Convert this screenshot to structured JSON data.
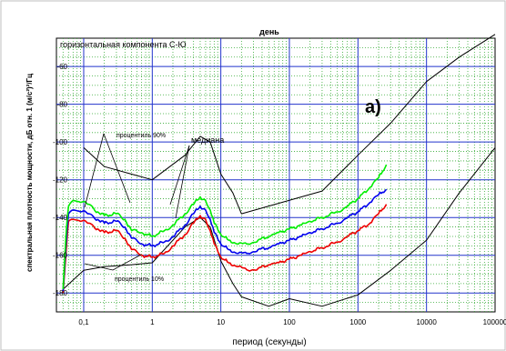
{
  "chart_data": {
    "type": "line",
    "title": "день",
    "subtitle": "горизонтальная компонента С-Ю",
    "xlabel": "период (секунды)",
    "ylabel": "спектральная плотность мощности, дБ отн. 1 (м/с²)²/Гц",
    "panel_label": "а)",
    "x_scale": "log",
    "xlim": [
      0.04,
      100000
    ],
    "ylim": [
      -190,
      -45
    ],
    "x_ticks": [
      0.1,
      1,
      10,
      100,
      1000,
      10000,
      100000
    ],
    "x_tick_labels": [
      "0,1",
      "1",
      "10",
      "100",
      "1000",
      "10000",
      "100000"
    ],
    "y_ticks": [
      -180,
      -160,
      -140,
      -120,
      -100,
      -80,
      -60
    ],
    "y_tick_labels": [
      "-180",
      "-160",
      "-140",
      "-120",
      "-100",
      "-80",
      "-60"
    ],
    "grid": true,
    "colors": {
      "major_grid": "#2233cc",
      "minor_grid": "#33aa33",
      "percentile_90": "#00ee00",
      "median": "#0000ee",
      "percentile_10": "#ee0000",
      "noise_model": "#000000"
    },
    "annotations": [
      {
        "text": "процентиль 90%"
      },
      {
        "text": "медиана"
      },
      {
        "text": "процентиль 10%"
      }
    ],
    "series": [
      {
        "key": "percentile_90",
        "x": [
          0.05,
          0.055,
          0.06,
          0.07,
          0.09,
          0.12,
          0.16,
          0.2,
          0.3,
          0.4,
          0.5,
          0.7,
          1,
          1.5,
          2,
          3,
          4,
          5,
          6,
          7,
          8,
          10,
          13,
          18,
          25,
          35,
          50,
          70,
          100,
          150,
          200,
          300,
          500,
          700,
          1000,
          1500,
          2000,
          2600
        ],
        "y": [
          -178,
          -150,
          -134,
          -131,
          -132,
          -133,
          -137,
          -139,
          -138,
          -141,
          -147,
          -148,
          -150,
          -147,
          -144,
          -138,
          -133,
          -129,
          -131,
          -136,
          -143,
          -149,
          -152,
          -154,
          -154,
          -152,
          -150,
          -148,
          -146,
          -144,
          -142,
          -140,
          -137,
          -134,
          -130,
          -124,
          -119,
          -112
        ]
      },
      {
        "key": "median",
        "x": [
          0.05,
          0.055,
          0.06,
          0.07,
          0.09,
          0.12,
          0.16,
          0.2,
          0.3,
          0.4,
          0.5,
          0.7,
          1,
          1.5,
          2,
          3,
          4,
          5,
          6,
          7,
          8,
          10,
          13,
          18,
          25,
          35,
          50,
          70,
          100,
          150,
          200,
          300,
          500,
          700,
          1000,
          1500,
          2000,
          2600
        ],
        "y": [
          -179,
          -155,
          -138,
          -136,
          -137,
          -138,
          -141,
          -143,
          -142,
          -145,
          -151,
          -154,
          -155,
          -153,
          -150,
          -144,
          -138,
          -134,
          -136,
          -141,
          -148,
          -154,
          -157,
          -159,
          -159,
          -157,
          -156,
          -154,
          -152,
          -150,
          -148,
          -146,
          -143,
          -140,
          -137,
          -132,
          -128,
          -125
        ]
      },
      {
        "key": "percentile_10",
        "x": [
          0.05,
          0.055,
          0.06,
          0.07,
          0.09,
          0.12,
          0.16,
          0.2,
          0.3,
          0.4,
          0.5,
          0.7,
          1,
          1.5,
          2,
          3,
          4,
          5,
          6,
          7,
          8,
          10,
          13,
          18,
          25,
          35,
          50,
          70,
          100,
          150,
          200,
          300,
          500,
          700,
          1000,
          1500,
          2000,
          2600
        ],
        "y": [
          -180,
          -160,
          -142,
          -141,
          -142,
          -143,
          -146,
          -148,
          -147,
          -151,
          -157,
          -160,
          -161,
          -159,
          -155,
          -149,
          -143,
          -139,
          -141,
          -147,
          -154,
          -161,
          -164,
          -166,
          -168,
          -167,
          -165,
          -164,
          -162,
          -160,
          -158,
          -156,
          -153,
          -150,
          -147,
          -143,
          -138,
          -133
        ]
      },
      {
        "key": "nhnm",
        "x": [
          0.1,
          0.2,
          0.5,
          1,
          3,
          5,
          7,
          10,
          15,
          20,
          300,
          1000,
          3000,
          10000,
          30000,
          100000
        ],
        "y": [
          -103,
          -113,
          -117,
          -120,
          -107,
          -97,
          -100,
          -117,
          -127,
          -138,
          -126,
          -107,
          -90,
          -68,
          -55,
          -43
        ]
      },
      {
        "key": "nlnm",
        "x": [
          0.05,
          0.1,
          0.2,
          0.5,
          1,
          3,
          5,
          7,
          10,
          15,
          20,
          50,
          100,
          300,
          1000,
          3000,
          10000,
          30000,
          100000
        ],
        "y": [
          -178,
          -168,
          -166,
          -165,
          -164,
          -145,
          -140,
          -145,
          -163,
          -175,
          -182,
          -187,
          -183,
          -187,
          -181,
          -168,
          -152,
          -127,
          -103
        ]
      }
    ]
  }
}
